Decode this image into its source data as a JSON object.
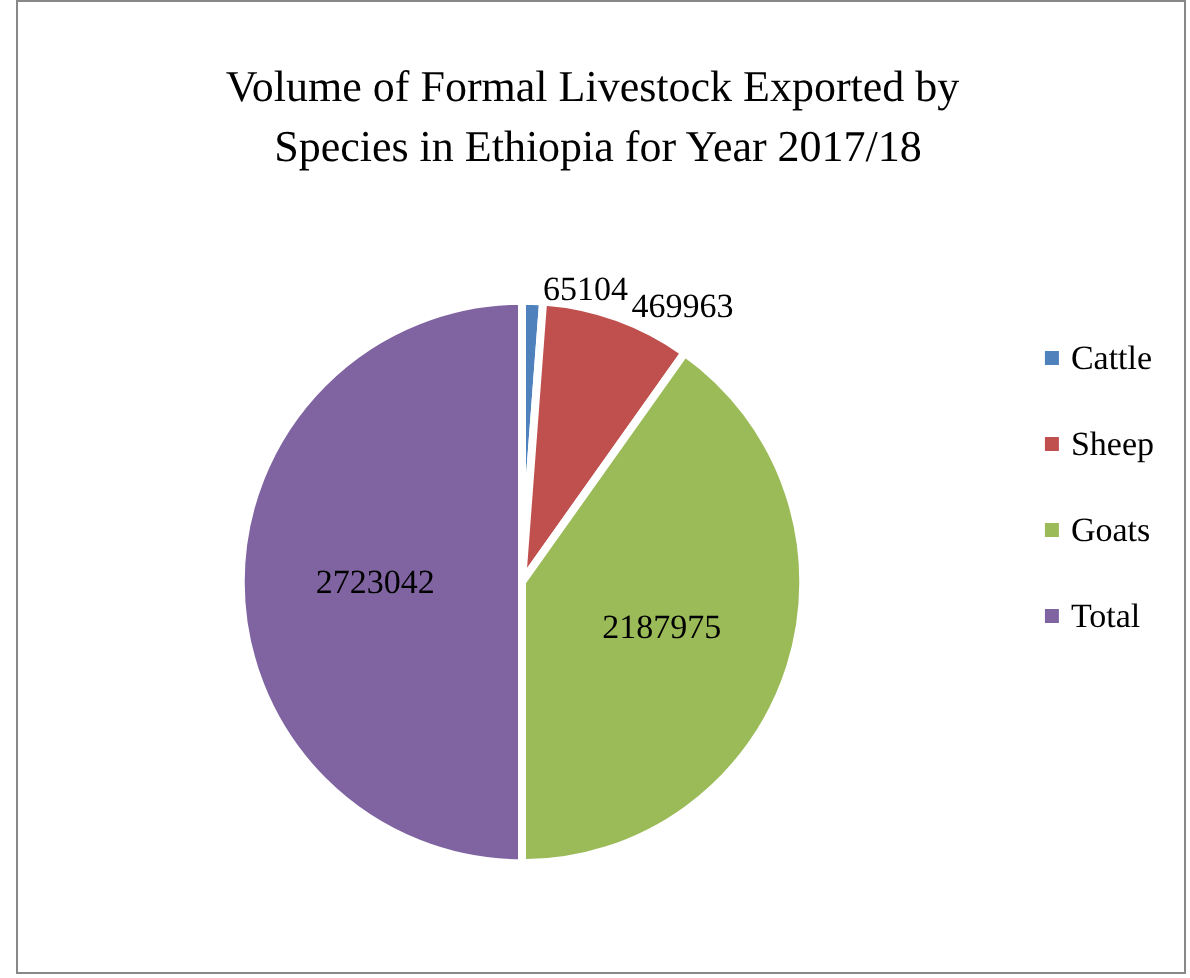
{
  "chart_data": {
    "type": "pie",
    "title": "Volume of Formal Livestock Exported by Species in Ethiopia for Year 2017/18",
    "categories": [
      "Cattle",
      "Sheep",
      "Goats",
      "Total"
    ],
    "values": [
      65104,
      469963,
      2187975,
      2723042
    ],
    "colors": [
      "#4f81bd",
      "#c0504d",
      "#9bbb59",
      "#8064a2"
    ],
    "data_labels": true,
    "legend": "right"
  }
}
